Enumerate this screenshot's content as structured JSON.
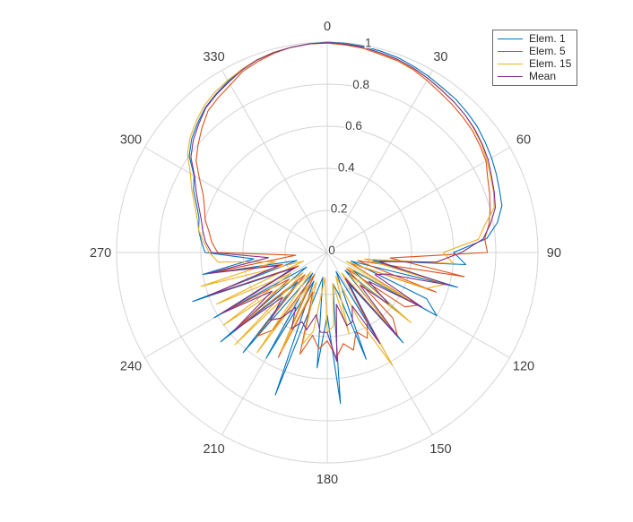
{
  "figure": {
    "background": "#ffffff",
    "text_color": "#3f3f3f",
    "grid_color": "#d4d4d4"
  },
  "chart_data": {
    "type": "line",
    "subtype": "polar",
    "title": "",
    "grid": true,
    "legend_position": "top-right",
    "r_max": 1,
    "r_ticks": [
      0,
      0.2,
      0.4,
      0.6,
      0.8,
      1
    ],
    "r_tick_labels": [
      "0",
      "0.2",
      "0.4",
      "0.6",
      "0.8",
      "1"
    ],
    "r_label_ray_deg": 10,
    "angle_ticks_deg": [
      0,
      30,
      60,
      90,
      120,
      150,
      180,
      210,
      240,
      270,
      300,
      330
    ],
    "angle_tick_labels": [
      "0",
      "30",
      "60",
      "90",
      "120",
      "150",
      "180",
      "210",
      "240",
      "270",
      "300",
      "330"
    ],
    "theta_deg": [
      0,
      5,
      10,
      15,
      20,
      25,
      30,
      35,
      40,
      45,
      50,
      55,
      60,
      65,
      70,
      75,
      80,
      85,
      90,
      95,
      100,
      105,
      110,
      115,
      120,
      125,
      130,
      135,
      140,
      145,
      150,
      155,
      160,
      165,
      170,
      175,
      180,
      185,
      190,
      195,
      200,
      205,
      210,
      215,
      220,
      225,
      230,
      235,
      240,
      245,
      250,
      255,
      260,
      265,
      270,
      275,
      280,
      285,
      290,
      295,
      300,
      305,
      310,
      315,
      320,
      325,
      330,
      335,
      340,
      345,
      350,
      355,
      360
    ],
    "series": [
      {
        "name": "Elem. 1",
        "color": "#0072BD",
        "values": [
          1.0,
          0.998,
          0.995,
          0.99,
          0.985,
          0.975,
          0.965,
          0.955,
          0.95,
          0.94,
          0.93,
          0.915,
          0.9,
          0.885,
          0.87,
          0.858,
          0.82,
          0.76,
          0.6,
          0.66,
          0.22,
          0.64,
          0.12,
          0.52,
          0.6,
          0.15,
          0.5,
          0.12,
          0.56,
          0.18,
          0.48,
          0.1,
          0.54,
          0.2,
          0.15,
          0.72,
          0.3,
          0.55,
          0.12,
          0.2,
          0.72,
          0.15,
          0.58,
          0.12,
          0.62,
          0.2,
          0.66,
          0.12,
          0.62,
          0.18,
          0.68,
          0.15,
          0.6,
          0.35,
          0.58,
          0.6,
          0.62,
          0.63,
          0.66,
          0.7,
          0.73,
          0.8,
          0.84,
          0.87,
          0.9,
          0.92,
          0.94,
          0.96,
          0.975,
          0.985,
          0.99,
          0.995,
          1.0
        ]
      },
      {
        "name": "Elem. 5",
        "color": "#D95319",
        "values": [
          0.995,
          0.99,
          0.985,
          0.975,
          0.97,
          0.96,
          0.945,
          0.93,
          0.92,
          0.91,
          0.9,
          0.885,
          0.87,
          0.84,
          0.82,
          0.8,
          0.78,
          0.75,
          0.76,
          0.3,
          0.66,
          0.15,
          0.55,
          0.12,
          0.5,
          0.45,
          0.12,
          0.44,
          0.52,
          0.15,
          0.38,
          0.45,
          0.4,
          0.48,
          0.44,
          0.5,
          0.42,
          0.46,
          0.4,
          0.5,
          0.2,
          0.55,
          0.12,
          0.45,
          0.52,
          0.15,
          0.55,
          0.22,
          0.58,
          0.15,
          0.6,
          0.22,
          0.55,
          0.15,
          0.52,
          0.55,
          0.57,
          0.6,
          0.62,
          0.65,
          0.7,
          0.76,
          0.8,
          0.84,
          0.88,
          0.9,
          0.92,
          0.95,
          0.965,
          0.98,
          0.99,
          0.995,
          0.995
        ]
      },
      {
        "name": "Elem. 15",
        "color": "#EDB120",
        "values": [
          0.998,
          0.995,
          0.99,
          0.98,
          0.975,
          0.965,
          0.955,
          0.945,
          0.935,
          0.925,
          0.91,
          0.895,
          0.875,
          0.855,
          0.84,
          0.82,
          0.76,
          0.72,
          0.55,
          0.6,
          0.18,
          0.58,
          0.5,
          0.1,
          0.45,
          0.12,
          0.52,
          0.15,
          0.48,
          0.12,
          0.62,
          0.35,
          0.12,
          0.4,
          0.15,
          0.35,
          0.38,
          0.12,
          0.38,
          0.45,
          0.15,
          0.52,
          0.18,
          0.58,
          0.12,
          0.62,
          0.15,
          0.6,
          0.2,
          0.58,
          0.12,
          0.62,
          0.25,
          0.52,
          0.56,
          0.59,
          0.62,
          0.64,
          0.67,
          0.71,
          0.75,
          0.81,
          0.85,
          0.88,
          0.91,
          0.93,
          0.945,
          0.96,
          0.975,
          0.985,
          0.99,
          0.995,
          0.998
        ]
      },
      {
        "name": "Mean",
        "color": "#7E2F8E",
        "values": [
          0.998,
          0.994,
          0.99,
          0.982,
          0.977,
          0.967,
          0.955,
          0.943,
          0.935,
          0.925,
          0.913,
          0.898,
          0.882,
          0.86,
          0.843,
          0.826,
          0.787,
          0.743,
          0.637,
          0.52,
          0.25,
          0.6,
          0.3,
          0.25,
          0.52,
          0.24,
          0.38,
          0.22,
          0.52,
          0.15,
          0.5,
          0.28,
          0.35,
          0.36,
          0.25,
          0.52,
          0.38,
          0.38,
          0.3,
          0.38,
          0.35,
          0.4,
          0.3,
          0.38,
          0.42,
          0.3,
          0.58,
          0.32,
          0.58,
          0.17,
          0.6,
          0.24,
          0.57,
          0.28,
          0.55,
          0.58,
          0.6,
          0.62,
          0.65,
          0.687,
          0.727,
          0.79,
          0.83,
          0.863,
          0.897,
          0.917,
          0.935,
          0.957,
          0.973,
          0.983,
          0.99,
          0.995,
          0.997
        ]
      }
    ]
  }
}
